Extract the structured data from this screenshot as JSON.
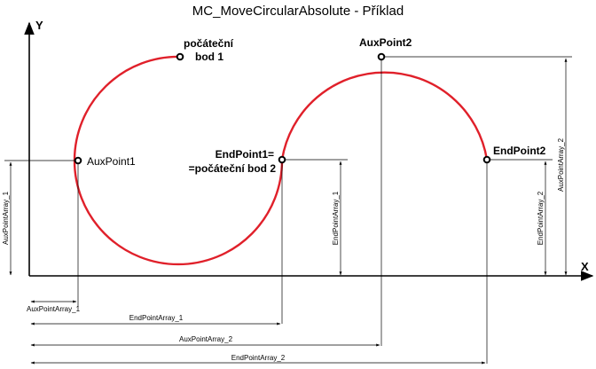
{
  "title": "MC_MoveCircularAbsolute - Příklad",
  "axes": {
    "x": "X",
    "y": "Y"
  },
  "points": {
    "start_line1": "počáteční",
    "start_line2": "bod 1",
    "aux1": "AuxPoint1",
    "end1_line1": "EndPoint1=",
    "end1_line2": "=počáteční bod 2",
    "aux2": "AuxPoint2",
    "end2": "EndPoint2"
  },
  "dimensions": {
    "aux1_y": "AuxPointArray_1",
    "end1_y": "EndPointArray_1",
    "end2_y": "EndPointArray_2",
    "aux2_y": "AuxPointArray_2",
    "aux1_x": "AuxPointArray_1",
    "end1_x": "EndPointArray_1",
    "aux2_x": "AuxPointArray_2",
    "end2_x": "EndPointArray_2"
  },
  "colors": {
    "arc": "#e0202a",
    "lines": "#000000"
  }
}
